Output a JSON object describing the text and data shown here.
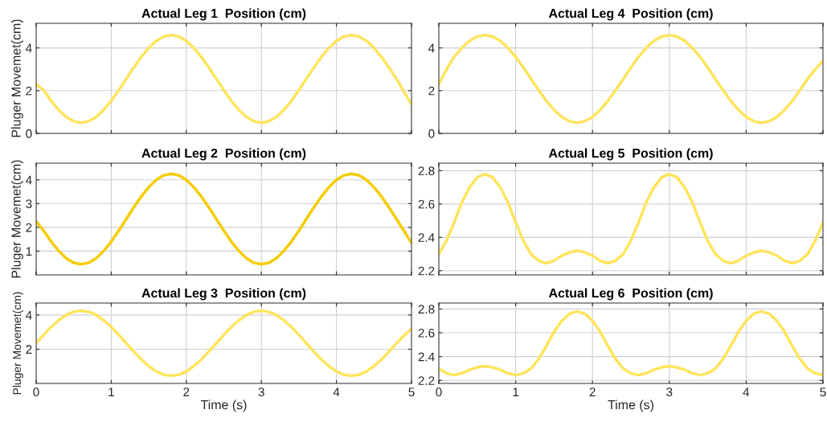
{
  "chart_data": [
    {
      "type": "line",
      "title": "Actual Leg 1  Position (cm)",
      "ylabel": "Pluger Movemet(cm)",
      "xlim": [
        0,
        5
      ],
      "xticks": [
        0,
        1,
        2,
        3,
        4,
        5
      ],
      "ylim": [
        0,
        5.15
      ],
      "yticks": [
        0,
        2,
        4
      ],
      "grid": true,
      "tick_labels": "y",
      "x": [
        0,
        0.1,
        0.2,
        0.3,
        0.4,
        0.5,
        0.6,
        0.7,
        0.8,
        0.9,
        1,
        1.1,
        1.2,
        1.3,
        1.4,
        1.5,
        1.6,
        1.7,
        1.8,
        1.9,
        2,
        2.1,
        2.2,
        2.3,
        2.4,
        2.5,
        2.6,
        2.7,
        2.8,
        2.9,
        3,
        3.1,
        3.2,
        3.3,
        3.4,
        3.5,
        3.6,
        3.7,
        3.8,
        3.9,
        4,
        4.1,
        4.2,
        4.3,
        4.4,
        4.5,
        4.6,
        4.7,
        4.8,
        4.9,
        5
      ],
      "series": [
        {
          "color": "#ffe45c",
          "values": [
            2.3,
            2.02,
            1.52,
            1.1,
            0.77,
            0.57,
            0.5,
            0.57,
            0.77,
            1.1,
            1.52,
            2.02,
            2.55,
            3.08,
            3.58,
            4.0,
            4.33,
            4.53,
            4.6,
            4.53,
            4.33,
            4.0,
            3.58,
            3.08,
            2.55,
            2.02,
            1.52,
            1.1,
            0.77,
            0.57,
            0.5,
            0.57,
            0.77,
            1.1,
            1.52,
            2.02,
            2.55,
            3.08,
            3.58,
            4.0,
            4.33,
            4.53,
            4.6,
            4.53,
            4.33,
            4.0,
            3.58,
            3.08,
            2.55,
            1.95,
            1.35
          ]
        }
      ]
    },
    {
      "type": "line",
      "title": "Actual Leg 4  Position (cm)",
      "xlim": [
        0,
        5
      ],
      "xticks": [
        0,
        1,
        2,
        3,
        4,
        5
      ],
      "ylim": [
        0,
        5.15
      ],
      "yticks": [
        0,
        2,
        4
      ],
      "grid": true,
      "tick_labels": "y",
      "x": [
        0,
        0.1,
        0.2,
        0.3,
        0.4,
        0.5,
        0.6,
        0.7,
        0.8,
        0.9,
        1,
        1.1,
        1.2,
        1.3,
        1.4,
        1.5,
        1.6,
        1.7,
        1.8,
        1.9,
        2,
        2.1,
        2.2,
        2.3,
        2.4,
        2.5,
        2.6,
        2.7,
        2.8,
        2.9,
        3,
        3.1,
        3.2,
        3.3,
        3.4,
        3.5,
        3.6,
        3.7,
        3.8,
        3.9,
        4,
        4.1,
        4.2,
        4.3,
        4.4,
        4.5,
        4.6,
        4.7,
        4.8,
        4.9,
        5
      ],
      "series": [
        {
          "color": "#ffe45c",
          "values": [
            2.3,
            3.0,
            3.58,
            4.0,
            4.33,
            4.53,
            4.6,
            4.53,
            4.33,
            4.0,
            3.58,
            3.08,
            2.55,
            2.02,
            1.52,
            1.1,
            0.77,
            0.57,
            0.5,
            0.57,
            0.77,
            1.1,
            1.52,
            2.02,
            2.55,
            3.08,
            3.58,
            4.0,
            4.33,
            4.53,
            4.6,
            4.53,
            4.33,
            4.0,
            3.58,
            3.08,
            2.55,
            2.02,
            1.52,
            1.1,
            0.77,
            0.57,
            0.5,
            0.57,
            0.77,
            1.1,
            1.52,
            2.02,
            2.55,
            3.0,
            3.4
          ]
        }
      ]
    },
    {
      "type": "line",
      "title": "Actual Leg 2  Position (cm)",
      "ylabel": "Pluger Movemet(cm)",
      "xlim": [
        0,
        5
      ],
      "xticks": [
        0,
        1,
        2,
        3,
        4,
        5
      ],
      "ylim": [
        0,
        4.7
      ],
      "yticks": [
        1,
        2,
        3,
        4
      ],
      "grid": true,
      "tick_labels": "y",
      "x": [
        0,
        0.1,
        0.2,
        0.3,
        0.4,
        0.5,
        0.6,
        0.7,
        0.8,
        0.9,
        1,
        1.1,
        1.2,
        1.3,
        1.4,
        1.5,
        1.6,
        1.7,
        1.8,
        1.9,
        2,
        2.1,
        2.2,
        2.3,
        2.4,
        2.5,
        2.6,
        2.7,
        2.8,
        2.9,
        3,
        3.1,
        3.2,
        3.3,
        3.4,
        3.5,
        3.6,
        3.7,
        3.8,
        3.9,
        4,
        4.1,
        4.2,
        4.3,
        4.4,
        4.5,
        4.6,
        4.7,
        4.8,
        4.9,
        5
      ],
      "series": [
        {
          "color": "#f5cc00",
          "values": [
            2.25,
            1.86,
            1.4,
            1.01,
            0.7,
            0.51,
            0.45,
            0.51,
            0.7,
            1.01,
            1.4,
            1.86,
            2.35,
            2.84,
            3.3,
            3.69,
            4.0,
            4.19,
            4.25,
            4.19,
            4.0,
            3.69,
            3.3,
            2.84,
            2.35,
            1.86,
            1.4,
            1.01,
            0.7,
            0.51,
            0.45,
            0.51,
            0.7,
            1.01,
            1.4,
            1.86,
            2.35,
            2.84,
            3.3,
            3.69,
            4.0,
            4.19,
            4.25,
            4.19,
            4.0,
            3.69,
            3.3,
            2.84,
            2.35,
            1.85,
            1.35
          ]
        }
      ]
    },
    {
      "type": "line",
      "title": "Actual Leg 5  Position (cm)",
      "xlim": [
        0,
        5
      ],
      "xticks": [
        0,
        1,
        2,
        3,
        4,
        5
      ],
      "ylim": [
        2.175,
        2.845
      ],
      "yticks": [
        2.2,
        2.4,
        2.6,
        2.8
      ],
      "grid": true,
      "tick_labels": "y",
      "x": [
        0,
        0.1,
        0.2,
        0.3,
        0.4,
        0.5,
        0.6,
        0.7,
        0.8,
        0.9,
        1,
        1.1,
        1.2,
        1.3,
        1.4,
        1.5,
        1.6,
        1.7,
        1.8,
        1.9,
        2,
        2.1,
        2.2,
        2.3,
        2.4,
        2.5,
        2.6,
        2.7,
        2.8,
        2.9,
        3,
        3.1,
        3.2,
        3.3,
        3.4,
        3.5,
        3.6,
        3.7,
        3.8,
        3.9,
        4,
        4.1,
        4.2,
        4.3,
        4.4,
        4.5,
        4.6,
        4.7,
        4.8,
        4.9,
        5
      ],
      "series": [
        {
          "color": "#ffe45c",
          "values": [
            2.3,
            2.38,
            2.49,
            2.61,
            2.7,
            2.76,
            2.78,
            2.76,
            2.7,
            2.61,
            2.49,
            2.38,
            2.3,
            2.26,
            2.245,
            2.26,
            2.29,
            2.31,
            2.32,
            2.31,
            2.29,
            2.26,
            2.245,
            2.26,
            2.3,
            2.38,
            2.49,
            2.61,
            2.7,
            2.76,
            2.78,
            2.76,
            2.7,
            2.61,
            2.49,
            2.38,
            2.3,
            2.26,
            2.245,
            2.26,
            2.29,
            2.31,
            2.32,
            2.31,
            2.29,
            2.26,
            2.245,
            2.26,
            2.3,
            2.38,
            2.49
          ]
        }
      ]
    },
    {
      "type": "line",
      "title": "Actual Leg 3  Position (cm)",
      "ylabel": "Pluger Movemet(cm)",
      "xlabel": "Time (s)",
      "xlim": [
        0,
        5
      ],
      "xticks": [
        0,
        1,
        2,
        3,
        4,
        5
      ],
      "ylim": [
        0,
        4.7
      ],
      "yticks": [
        2,
        4
      ],
      "grid": true,
      "x": [
        0,
        0.1,
        0.2,
        0.3,
        0.4,
        0.5,
        0.6,
        0.7,
        0.8,
        0.9,
        1,
        1.1,
        1.2,
        1.3,
        1.4,
        1.5,
        1.6,
        1.7,
        1.8,
        1.9,
        2,
        2.1,
        2.2,
        2.3,
        2.4,
        2.5,
        2.6,
        2.7,
        2.8,
        2.9,
        3,
        3.1,
        3.2,
        3.3,
        3.4,
        3.5,
        3.6,
        3.7,
        3.8,
        3.9,
        4,
        4.1,
        4.2,
        4.3,
        4.4,
        4.5,
        4.6,
        4.7,
        4.8,
        4.9,
        5
      ],
      "series": [
        {
          "color": "#ffe45c",
          "values": [
            2.35,
            2.84,
            3.3,
            3.69,
            4.0,
            4.19,
            4.25,
            4.19,
            4.0,
            3.69,
            3.3,
            2.84,
            2.35,
            1.86,
            1.4,
            1.01,
            0.7,
            0.51,
            0.45,
            0.51,
            0.7,
            1.01,
            1.4,
            1.86,
            2.35,
            2.84,
            3.3,
            3.69,
            4.0,
            4.19,
            4.25,
            4.19,
            4.0,
            3.69,
            3.3,
            2.84,
            2.35,
            1.86,
            1.4,
            1.01,
            0.7,
            0.51,
            0.45,
            0.51,
            0.7,
            1.01,
            1.4,
            1.86,
            2.35,
            2.8,
            3.2
          ]
        }
      ]
    },
    {
      "type": "line",
      "title": "Actual Leg 6  Position (cm)",
      "xlabel": "Time (s)",
      "xlim": [
        0,
        5
      ],
      "xticks": [
        0,
        1,
        2,
        3,
        4,
        5
      ],
      "ylim": [
        2.175,
        2.85
      ],
      "yticks": [
        2.2,
        2.4,
        2.6,
        2.8
      ],
      "grid": true,
      "x": [
        0,
        0.1,
        0.2,
        0.3,
        0.4,
        0.5,
        0.6,
        0.7,
        0.8,
        0.9,
        1,
        1.1,
        1.2,
        1.3,
        1.4,
        1.5,
        1.6,
        1.7,
        1.8,
        1.9,
        2,
        2.1,
        2.2,
        2.3,
        2.4,
        2.5,
        2.6,
        2.7,
        2.8,
        2.9,
        3,
        3.1,
        3.2,
        3.3,
        3.4,
        3.5,
        3.6,
        3.7,
        3.8,
        3.9,
        4,
        4.1,
        4.2,
        4.3,
        4.4,
        4.5,
        4.6,
        4.7,
        4.8,
        4.9,
        5
      ],
      "series": [
        {
          "color": "#ffe45c",
          "values": [
            2.3,
            2.26,
            2.245,
            2.26,
            2.29,
            2.31,
            2.32,
            2.31,
            2.29,
            2.26,
            2.245,
            2.26,
            2.3,
            2.38,
            2.49,
            2.61,
            2.7,
            2.76,
            2.78,
            2.76,
            2.7,
            2.61,
            2.49,
            2.38,
            2.3,
            2.26,
            2.245,
            2.26,
            2.29,
            2.31,
            2.32,
            2.31,
            2.29,
            2.26,
            2.245,
            2.26,
            2.3,
            2.38,
            2.49,
            2.61,
            2.7,
            2.76,
            2.78,
            2.76,
            2.7,
            2.61,
            2.49,
            2.38,
            2.3,
            2.26,
            2.245
          ]
        }
      ]
    }
  ]
}
